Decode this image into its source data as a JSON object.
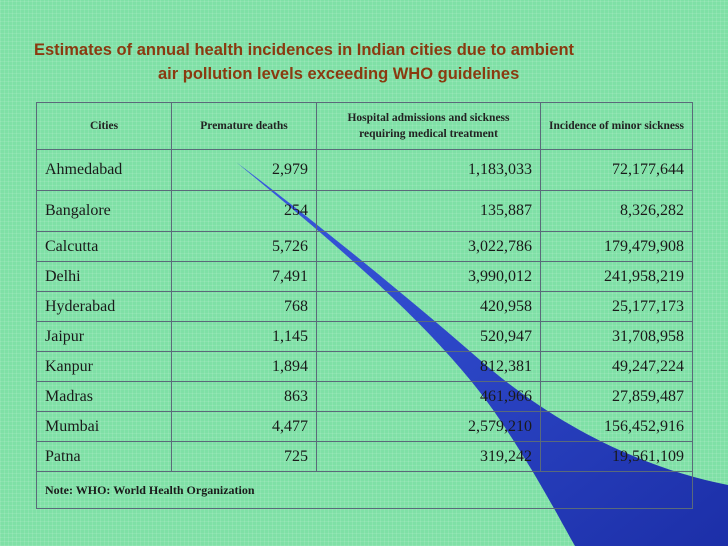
{
  "title": {
    "line1": "Estimates of annual health incidences in Indian cities due to ambient",
    "line2": "air pollution levels exceeding WHO guidelines"
  },
  "table": {
    "headers": [
      "Cities",
      "Premature deaths",
      "Hospital admissions and sickness requiring medical treatment",
      "Incidence of minor sickness"
    ],
    "rows": [
      [
        "Ahmedabad",
        "2,979",
        "1,183,033",
        "72,177,644"
      ],
      [
        "Bangalore",
        "254",
        "135,887",
        "8,326,282"
      ],
      [
        "Calcutta",
        "5,726",
        "3,022,786",
        "179,479,908"
      ],
      [
        "Delhi",
        "7,491",
        "3,990,012",
        "241,958,219"
      ],
      [
        "Hyderabad",
        "768",
        "420,958",
        "25,177,173"
      ],
      [
        "Jaipur",
        "1,145",
        "520,947",
        "31,708,958"
      ],
      [
        "Kanpur",
        "1,894",
        "812,381",
        "49,247,224"
      ],
      [
        "Madras",
        "863",
        "461,966",
        "27,859,487"
      ],
      [
        "Mumbai",
        "4,477",
        "2,579,210",
        "156,452,916"
      ],
      [
        "Patna",
        "725",
        "319,242",
        "19,561,109"
      ]
    ],
    "note": "Note: WHO: World Health Organization"
  },
  "colors": {
    "background": "#7fe0a6",
    "title": "#8a3a10",
    "swoosh": "#2b46c8"
  }
}
